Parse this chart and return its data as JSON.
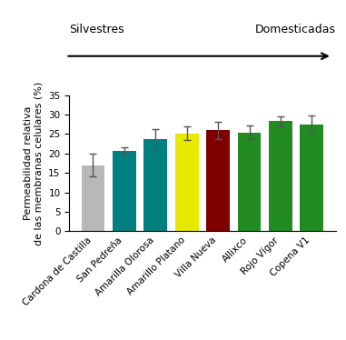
{
  "categories": [
    "Cardona de Castilla",
    "San Pedreña",
    "Amarilla Olorosa",
    "Amarillo Platano",
    "Villa Nueva",
    "Allixco",
    "Rojo Vígor",
    "Copena V1"
  ],
  "values": [
    17.0,
    20.7,
    23.7,
    25.2,
    26.0,
    25.4,
    28.3,
    27.5
  ],
  "errors": [
    3.0,
    1.0,
    2.5,
    1.8,
    2.2,
    1.8,
    1.3,
    2.2
  ],
  "bar_colors": [
    "#b8b8b8",
    "#008080",
    "#008080",
    "#e8e800",
    "#800000",
    "#228B22",
    "#228B22",
    "#228B22"
  ],
  "ylabel": "Permeabilidad relativa\nde las membranas celulares (%)",
  "ylim": [
    0,
    35
  ],
  "yticks": [
    0,
    5,
    10,
    15,
    20,
    25,
    30,
    35
  ],
  "label_silvestres": "Silvestres",
  "label_domesticadas": "Domesticadas",
  "axis_fontsize": 8,
  "tick_fontsize": 7.5,
  "label_fontsize": 9
}
